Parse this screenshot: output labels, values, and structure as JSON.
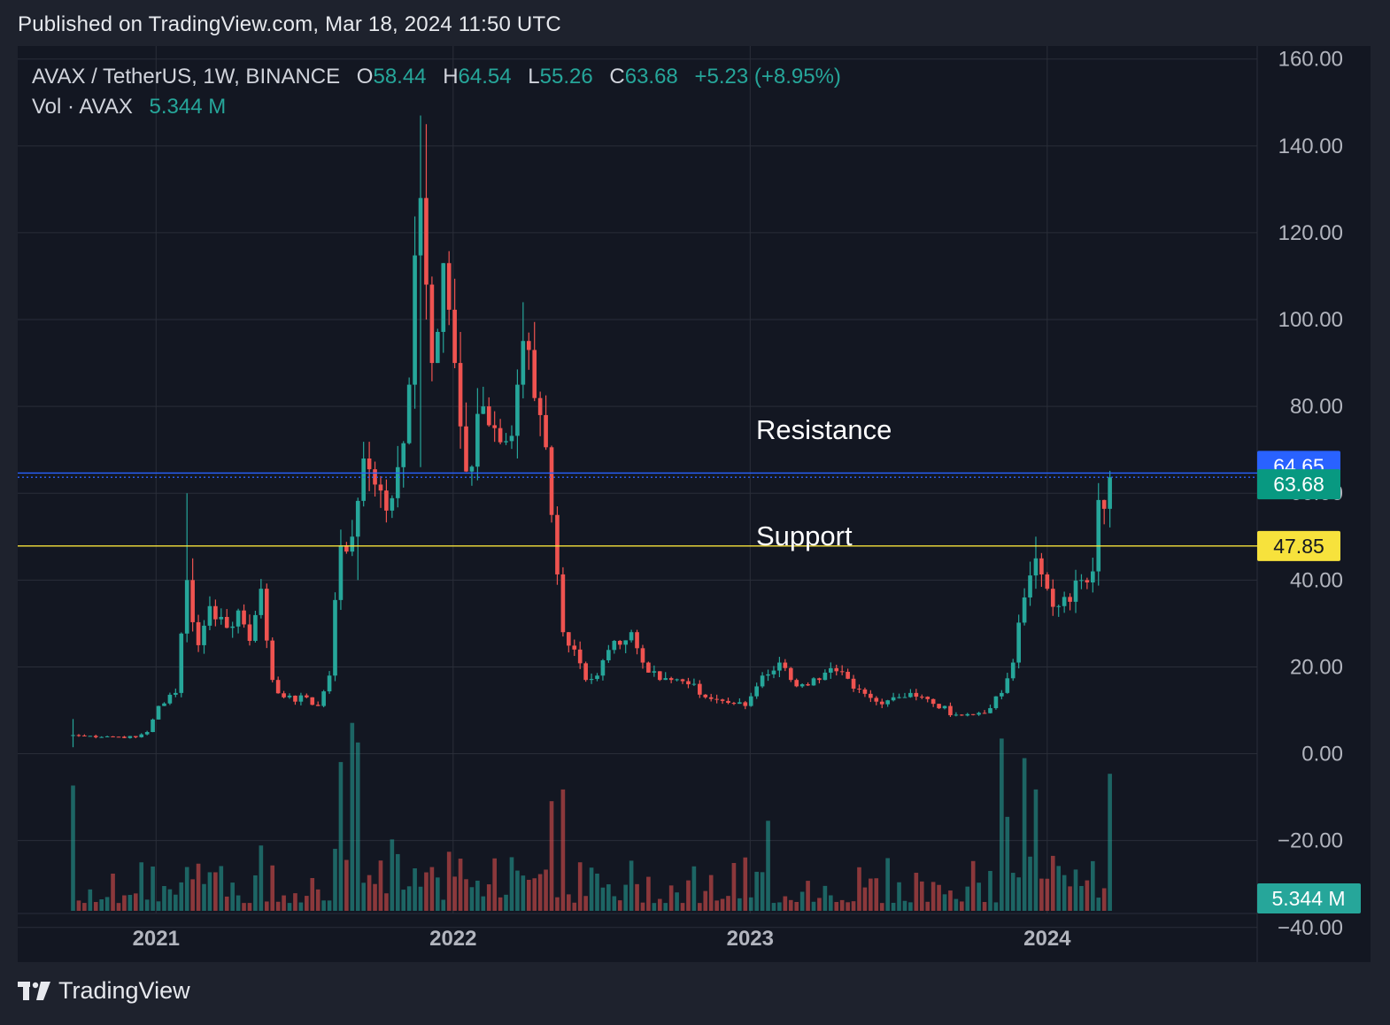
{
  "header": {
    "published": "Published on TradingView.com, Mar 18, 2024 11:50 UTC"
  },
  "legend": {
    "symbol": "AVAX / TetherUS, 1W, BINANCE",
    "open_label": "O",
    "open": "58.44",
    "high_label": "H",
    "high": "64.54",
    "low_label": "L",
    "low": "55.26",
    "close_label": "C",
    "close": "63.68",
    "change": "+5.23 (+8.95%)",
    "vol_label": "Vol · AVAX",
    "vol": "5.344 M"
  },
  "annotations": {
    "resistance": "Resistance",
    "support": "Support"
  },
  "footer": {
    "brand": "TradingView"
  },
  "colors": {
    "up": "#26a69a",
    "down": "#ef5350",
    "resistance_line": "#2962ff",
    "support_line": "#f7e23c",
    "background": "#131722"
  },
  "chart_data": {
    "type": "candlestick",
    "interval": "1W",
    "y_tick_labels": [
      "160.00",
      "140.00",
      "120.00",
      "100.00",
      "80.00",
      "60.00",
      "40.00",
      "20.00",
      "0.00",
      "−20.00",
      "−40.00"
    ],
    "y_ticks": [
      160,
      140,
      120,
      100,
      80,
      60,
      40,
      20,
      0,
      -20,
      -40
    ],
    "ylim": [
      -48,
      163
    ],
    "x_tick_labels": [
      "2021",
      "2022",
      "2023",
      "2024"
    ],
    "x_ticks": [
      "2021-01-01",
      "2022-01-01",
      "2023-01-01",
      "2024-01-01"
    ],
    "x_range": [
      "2020-07-15",
      "2024-09-15"
    ],
    "first_candle": "2020-09-21",
    "price_labels": [
      {
        "value": 64.65,
        "text": "64.65",
        "color": "#2962ff",
        "text_color": "#ffffff"
      },
      {
        "value": 63.68,
        "text": "63.68",
        "color": "#089981",
        "text_color": "#ffffff"
      },
      {
        "value": 47.85,
        "text": "47.85",
        "color": "#f7e23c",
        "text_color": "#131722"
      }
    ],
    "volume_label": "5.344 M",
    "horizontal_lines": [
      {
        "name": "Resistance",
        "value": 64.65,
        "style": "solid",
        "color": "#2962ff"
      },
      {
        "name": "Support",
        "value": 47.85,
        "style": "solid",
        "color": "#f7e23c"
      },
      {
        "name": "last-close",
        "value": 63.68,
        "style": "dotted",
        "color": "#2962ff"
      }
    ],
    "close_path": [
      [
        "2020-09-21",
        4.3
      ],
      [
        "2020-10-05",
        4.1
      ],
      [
        "2020-11-02",
        4.0
      ],
      [
        "2020-12-07",
        3.8
      ],
      [
        "2020-12-21",
        5.0
      ],
      [
        "2021-01-04",
        11.0
      ],
      [
        "2021-01-25",
        14.0
      ],
      [
        "2021-02-08",
        40.0
      ],
      [
        "2021-02-22",
        25.0
      ],
      [
        "2021-03-08",
        34.0
      ],
      [
        "2021-03-29",
        29.0
      ],
      [
        "2021-04-12",
        33.0
      ],
      [
        "2021-04-26",
        26.0
      ],
      [
        "2021-05-10",
        38.0
      ],
      [
        "2021-05-24",
        17.0
      ],
      [
        "2021-06-07",
        13.0
      ],
      [
        "2021-06-21",
        12.0
      ],
      [
        "2021-07-05",
        13.0
      ],
      [
        "2021-07-19",
        11.0
      ],
      [
        "2021-08-02",
        18.0
      ],
      [
        "2021-08-16",
        48.0
      ],
      [
        "2021-08-30",
        50.0
      ],
      [
        "2021-09-13",
        68.0
      ],
      [
        "2021-09-27",
        62.0
      ],
      [
        "2021-10-11",
        56.0
      ],
      [
        "2021-10-25",
        66.0
      ],
      [
        "2021-11-08",
        85.0
      ],
      [
        "2021-11-22",
        128.0
      ],
      [
        "2021-12-06",
        90.0
      ],
      [
        "2021-12-20",
        113.0
      ],
      [
        "2022-01-03",
        90.0
      ],
      [
        "2022-01-17",
        65.0
      ],
      [
        "2022-02-07",
        80.0
      ],
      [
        "2022-02-21",
        75.0
      ],
      [
        "2022-03-07",
        72.0
      ],
      [
        "2022-03-21",
        85.0
      ],
      [
        "2022-04-04",
        93.0
      ],
      [
        "2022-04-18",
        78.0
      ],
      [
        "2022-05-02",
        55.0
      ],
      [
        "2022-05-16",
        28.0
      ],
      [
        "2022-05-30",
        24.0
      ],
      [
        "2022-06-13",
        17.0
      ],
      [
        "2022-06-27",
        18.0
      ],
      [
        "2022-07-18",
        26.0
      ],
      [
        "2022-08-08",
        28.0
      ],
      [
        "2022-08-22",
        21.0
      ],
      [
        "2022-09-05",
        19.0
      ],
      [
        "2022-09-26",
        17.0
      ],
      [
        "2022-10-17",
        16.0
      ],
      [
        "2022-11-07",
        13.0
      ],
      [
        "2022-11-21",
        12.5
      ],
      [
        "2022-12-12",
        11.5
      ],
      [
        "2022-12-26",
        11.0
      ],
      [
        "2023-01-16",
        18.0
      ],
      [
        "2023-02-06",
        21.0
      ],
      [
        "2023-02-20",
        17.0
      ],
      [
        "2023-03-06",
        16.0
      ],
      [
        "2023-03-27",
        17.0
      ],
      [
        "2023-04-17",
        19.0
      ],
      [
        "2023-05-08",
        15.0
      ],
      [
        "2023-06-05",
        12.0
      ],
      [
        "2023-06-26",
        13.0
      ],
      [
        "2023-07-17",
        14.0
      ],
      [
        "2023-08-14",
        11.5
      ],
      [
        "2023-09-11",
        9.0
      ],
      [
        "2023-10-02",
        9.0
      ],
      [
        "2023-10-23",
        10.5
      ],
      [
        "2023-11-06",
        14.0
      ],
      [
        "2023-11-20",
        21.0
      ],
      [
        "2023-12-04",
        36.0
      ],
      [
        "2023-12-18",
        45.0
      ],
      [
        "2024-01-01",
        38.0
      ],
      [
        "2024-01-15",
        34.0
      ],
      [
        "2024-01-29",
        35.0
      ],
      [
        "2024-02-12",
        40.0
      ],
      [
        "2024-02-26",
        42.0
      ],
      [
        "2024-03-04",
        58.44
      ],
      [
        "2024-03-18",
        63.68
      ]
    ],
    "spikes": {
      "2020-09-21": [
        1.5,
        8
      ],
      "2021-02-08": [
        36,
        60
      ],
      "2021-02-15": [
        30,
        45
      ],
      "2021-09-06": [
        40,
        58
      ],
      "2021-11-22": [
        66,
        147
      ],
      "2021-11-29": [
        100,
        145
      ],
      "2022-03-28": [
        84,
        104
      ],
      "2023-12-18": [
        38,
        50
      ],
      "2024-03-18": [
        55.26,
        64.54
      ]
    },
    "volume_ylim": [
      0,
      260
    ],
    "volume_tall": {
      "2020-09-21": 160,
      "2021-08-16": 190,
      "2021-08-30": 240,
      "2021-09-06": 215,
      "2022-05-02": 140,
      "2022-05-16": 155,
      "2023-01-23": 115,
      "2023-11-06": 220,
      "2023-11-13": 120,
      "2023-12-04": 195,
      "2023-12-18": 155,
      "2024-03-18": 175
    }
  }
}
